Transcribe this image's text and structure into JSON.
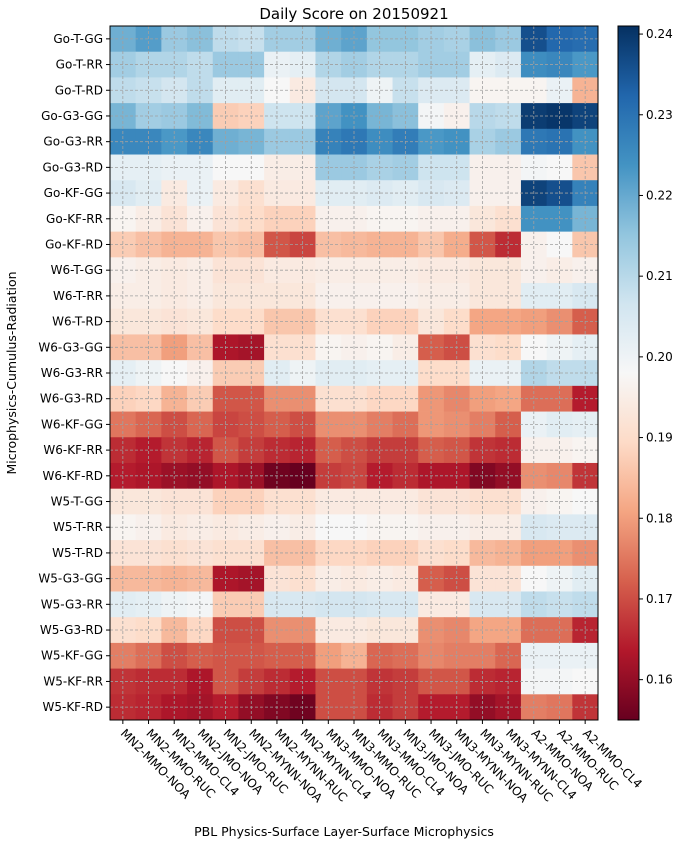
{
  "chart_data": {
    "type": "heatmap",
    "title": "Daily Score on 20150921",
    "xlabel": "PBL Physics-Surface Layer-Surface Microphysics",
    "ylabel": "Microphysics-Cumulus-Radiation",
    "x_categories": [
      "MN2-MMO-NOA",
      "MN2-MMO-RUC",
      "MN2-MMO-CL4",
      "MN2-JMO-NOA",
      "MN2-JMO-RUC",
      "MN2-MYNN-NOA",
      "MN2-MYNN-RUC",
      "MN2-MYNN-CL4",
      "MN3-MMO-NOA",
      "MN3-MMO-RUC",
      "MN3-MMO-CL4",
      "MN3-JMO-NOA",
      "MN3-JMO-RUC",
      "MN3-MYNN-NOA",
      "MN3-MYNN-RUC",
      "MN3-MYNN-CL4",
      "A2-MMO-NOA",
      "A2-MMO-RUC",
      "A2-MMO-CL4"
    ],
    "x_tick_labels": [
      "MN2-MMO-NOA",
      "MN2-MMO-RUC",
      "MN2-MMO-CL4",
      "MN2-JMO-NOA",
      "MN2-JMO-RUC",
      "MN2-MYNN-NOA",
      "MN2-MYNN-RUC",
      "MN2-MYNN-CL4",
      "MN3-MMO-NOA",
      "MN3-MMO-RUC",
      "MN3-MMO-CL4",
      "MN3-JMO-NOA",
      "MN3-JMO-RUC",
      "MN3-MYNN-NOA",
      "MN3-MYNN-RUC",
      "MN3-MYNN-CL4",
      "A2-MMO-NOA",
      "A2-MMO-RUC",
      "A2-MMO-CL4"
    ],
    "y_categories": [
      "Go-T-GG",
      "Go-T-RR",
      "Go-T-RD",
      "Go-G3-GG",
      "Go-G3-RR",
      "Go-G3-RD",
      "Go-KF-GG",
      "Go-KF-RR",
      "Go-KF-RD",
      "W6-T-GG",
      "W6-T-RR",
      "W6-T-RD",
      "W6-G3-GG",
      "W6-G3-RR",
      "W6-G3-RD",
      "W6-KF-GG",
      "W6-KF-RR",
      "W6-KF-RD",
      "W5-T-GG",
      "W5-T-RR",
      "W5-T-RD",
      "W5-G3-GG",
      "W5-G3-RR",
      "W5-G3-RD",
      "W5-KF-GG",
      "W5-KF-RR",
      "W5-KF-RD"
    ],
    "colorbar": {
      "vmin": 0.155,
      "vmax": 0.241,
      "ticks": [
        0.16,
        0.17,
        0.18,
        0.19,
        0.2,
        0.21,
        0.22,
        0.23,
        0.24
      ],
      "tick_labels": [
        "0.16",
        "0.17",
        "0.18",
        "0.19",
        "0.20",
        "0.21",
        "0.22",
        "0.23",
        "0.24"
      ],
      "colormap": "RdBu"
    },
    "grid": true,
    "values": [
      [
        0.219,
        0.222,
        0.214,
        0.216,
        0.209,
        0.208,
        0.213,
        0.213,
        0.219,
        0.221,
        0.215,
        0.215,
        0.213,
        0.212,
        0.216,
        0.214,
        0.236,
        0.232,
        0.231
      ],
      [
        0.213,
        0.211,
        0.211,
        0.209,
        0.214,
        0.214,
        0.201,
        0.202,
        0.211,
        0.213,
        0.211,
        0.211,
        0.213,
        0.213,
        0.202,
        0.204,
        0.225,
        0.226,
        0.223
      ],
      [
        0.209,
        0.208,
        0.206,
        0.209,
        0.203,
        0.203,
        0.198,
        0.194,
        0.206,
        0.206,
        0.2,
        0.208,
        0.204,
        0.204,
        0.197,
        0.197,
        0.197,
        0.201,
        0.183
      ],
      [
        0.218,
        0.213,
        0.214,
        0.217,
        0.187,
        0.188,
        0.207,
        0.207,
        0.221,
        0.224,
        0.218,
        0.216,
        0.199,
        0.196,
        0.21,
        0.209,
        0.239,
        0.24,
        0.238
      ],
      [
        0.226,
        0.226,
        0.223,
        0.226,
        0.219,
        0.218,
        0.214,
        0.214,
        0.227,
        0.229,
        0.225,
        0.228,
        0.223,
        0.224,
        0.212,
        0.214,
        0.229,
        0.23,
        0.224
      ],
      [
        0.202,
        0.202,
        0.201,
        0.201,
        0.198,
        0.198,
        0.195,
        0.195,
        0.214,
        0.214,
        0.212,
        0.213,
        0.207,
        0.207,
        0.196,
        0.196,
        0.199,
        0.198,
        0.186
      ],
      [
        0.205,
        0.203,
        0.194,
        0.201,
        0.194,
        0.191,
        0.194,
        0.194,
        0.203,
        0.203,
        0.204,
        0.203,
        0.205,
        0.204,
        0.196,
        0.196,
        0.238,
        0.236,
        0.227
      ],
      [
        0.197,
        0.195,
        0.192,
        0.196,
        0.192,
        0.19,
        0.188,
        0.188,
        0.196,
        0.196,
        0.197,
        0.197,
        0.196,
        0.196,
        0.193,
        0.191,
        0.224,
        0.224,
        0.218
      ],
      [
        0.187,
        0.185,
        0.183,
        0.183,
        0.186,
        0.185,
        0.171,
        0.169,
        0.185,
        0.184,
        0.183,
        0.183,
        0.186,
        0.182,
        0.171,
        0.166,
        0.196,
        0.198,
        0.186
      ],
      [
        0.196,
        0.195,
        0.194,
        0.195,
        0.192,
        0.192,
        0.194,
        0.194,
        0.195,
        0.195,
        0.195,
        0.195,
        0.194,
        0.194,
        0.193,
        0.193,
        0.196,
        0.195,
        0.196
      ],
      [
        0.195,
        0.195,
        0.194,
        0.195,
        0.193,
        0.193,
        0.193,
        0.193,
        0.196,
        0.196,
        0.196,
        0.196,
        0.195,
        0.195,
        0.193,
        0.193,
        0.203,
        0.203,
        0.205
      ],
      [
        0.193,
        0.193,
        0.192,
        0.193,
        0.19,
        0.19,
        0.186,
        0.186,
        0.191,
        0.191,
        0.188,
        0.188,
        0.193,
        0.19,
        0.181,
        0.181,
        0.18,
        0.178,
        0.172
      ],
      [
        0.185,
        0.185,
        0.18,
        0.185,
        0.163,
        0.162,
        0.191,
        0.191,
        0.197,
        0.196,
        0.197,
        0.195,
        0.172,
        0.17,
        0.191,
        0.19,
        0.198,
        0.2,
        0.202
      ],
      [
        0.202,
        0.2,
        0.198,
        0.196,
        0.187,
        0.187,
        0.203,
        0.2,
        0.203,
        0.203,
        0.202,
        0.202,
        0.19,
        0.19,
        0.201,
        0.201,
        0.211,
        0.209,
        0.209
      ],
      [
        0.188,
        0.189,
        0.183,
        0.187,
        0.171,
        0.171,
        0.178,
        0.178,
        0.191,
        0.191,
        0.189,
        0.189,
        0.179,
        0.177,
        0.18,
        0.181,
        0.174,
        0.174,
        0.164
      ],
      [
        0.175,
        0.173,
        0.17,
        0.173,
        0.169,
        0.17,
        0.172,
        0.17,
        0.178,
        0.178,
        0.176,
        0.174,
        0.179,
        0.178,
        0.176,
        0.172,
        0.201,
        0.203,
        0.202
      ],
      [
        0.166,
        0.164,
        0.167,
        0.165,
        0.171,
        0.168,
        0.166,
        0.165,
        0.172,
        0.17,
        0.168,
        0.168,
        0.172,
        0.171,
        0.167,
        0.166,
        0.196,
        0.196,
        0.197
      ],
      [
        0.164,
        0.163,
        0.161,
        0.16,
        0.163,
        0.161,
        0.156,
        0.155,
        0.168,
        0.169,
        0.164,
        0.166,
        0.163,
        0.163,
        0.158,
        0.16,
        0.178,
        0.177,
        0.167
      ],
      [
        0.193,
        0.193,
        0.192,
        0.192,
        0.188,
        0.188,
        0.191,
        0.191,
        0.194,
        0.194,
        0.194,
        0.194,
        0.192,
        0.192,
        0.191,
        0.191,
        0.196,
        0.197,
        0.198
      ],
      [
        0.197,
        0.196,
        0.194,
        0.195,
        0.194,
        0.195,
        0.196,
        0.195,
        0.198,
        0.198,
        0.197,
        0.197,
        0.196,
        0.196,
        0.195,
        0.195,
        0.205,
        0.204,
        0.204
      ],
      [
        0.192,
        0.192,
        0.191,
        0.192,
        0.191,
        0.191,
        0.185,
        0.185,
        0.189,
        0.189,
        0.188,
        0.188,
        0.191,
        0.19,
        0.184,
        0.183,
        0.18,
        0.18,
        0.178
      ],
      [
        0.184,
        0.184,
        0.183,
        0.184,
        0.163,
        0.162,
        0.192,
        0.191,
        0.195,
        0.194,
        0.195,
        0.194,
        0.172,
        0.17,
        0.192,
        0.192,
        0.198,
        0.2,
        0.203
      ],
      [
        0.203,
        0.202,
        0.2,
        0.199,
        0.187,
        0.187,
        0.205,
        0.205,
        0.206,
        0.206,
        0.205,
        0.205,
        0.194,
        0.194,
        0.205,
        0.205,
        0.209,
        0.208,
        0.209
      ],
      [
        0.191,
        0.19,
        0.184,
        0.189,
        0.17,
        0.17,
        0.178,
        0.178,
        0.194,
        0.194,
        0.193,
        0.193,
        0.178,
        0.177,
        0.181,
        0.181,
        0.174,
        0.174,
        0.165
      ],
      [
        0.176,
        0.174,
        0.17,
        0.172,
        0.171,
        0.171,
        0.172,
        0.172,
        0.18,
        0.183,
        0.173,
        0.174,
        0.177,
        0.176,
        0.176,
        0.173,
        0.201,
        0.201,
        0.201
      ],
      [
        0.167,
        0.166,
        0.166,
        0.163,
        0.171,
        0.168,
        0.166,
        0.164,
        0.17,
        0.17,
        0.167,
        0.168,
        0.171,
        0.171,
        0.166,
        0.165,
        0.199,
        0.199,
        0.198
      ],
      [
        0.166,
        0.165,
        0.163,
        0.162,
        0.164,
        0.16,
        0.158,
        0.156,
        0.17,
        0.17,
        0.166,
        0.168,
        0.164,
        0.164,
        0.16,
        0.162,
        0.176,
        0.175,
        0.167
      ]
    ]
  }
}
